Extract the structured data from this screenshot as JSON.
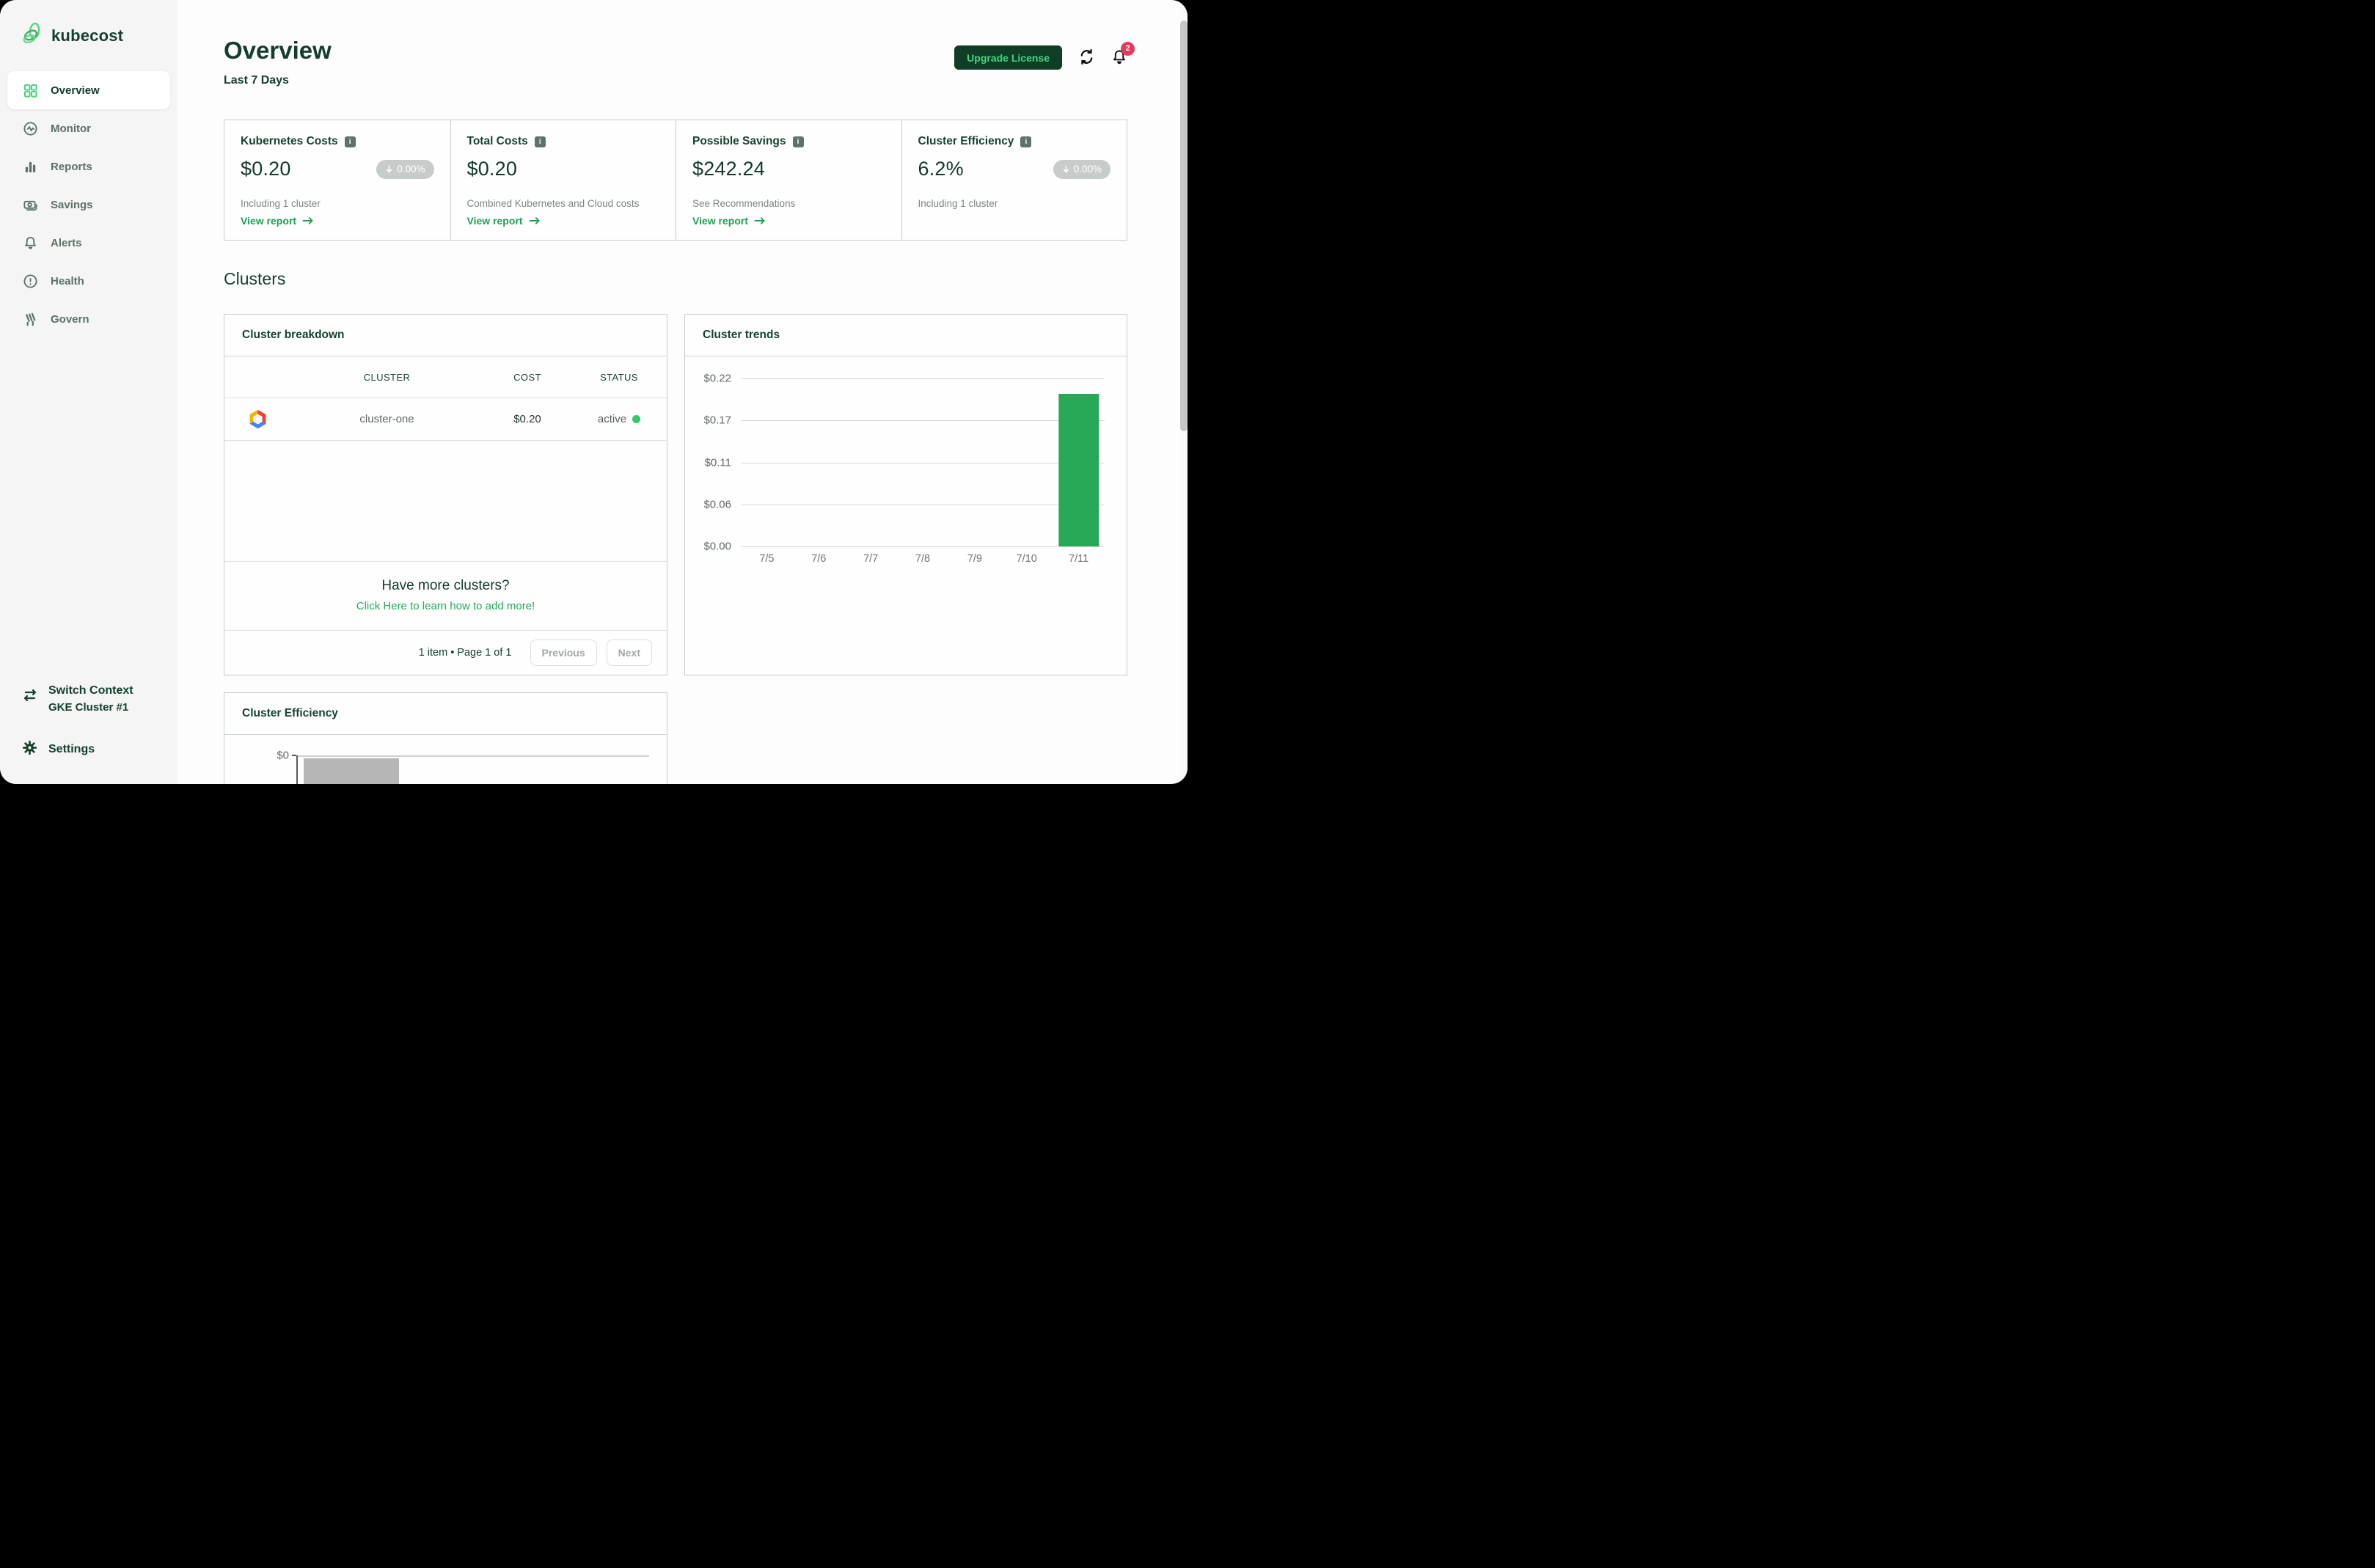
{
  "app": {
    "name": "kubecost"
  },
  "header": {
    "title": "Overview",
    "subtitle": "Last 7 Days",
    "upgrade_label": "Upgrade License",
    "notification_count": "2"
  },
  "sidebar": {
    "items": [
      {
        "label": "Overview",
        "icon": "grid-icon",
        "active": true
      },
      {
        "label": "Monitor",
        "icon": "pulse-circle-icon",
        "active": false
      },
      {
        "label": "Reports",
        "icon": "bar-chart-icon",
        "active": false
      },
      {
        "label": "Savings",
        "icon": "banknote-icon",
        "active": false
      },
      {
        "label": "Alerts",
        "icon": "bell-icon",
        "active": false
      },
      {
        "label": "Health",
        "icon": "exclamation-circle-icon",
        "active": false
      },
      {
        "label": "Govern",
        "icon": "govern-stripes-icon",
        "active": false
      }
    ],
    "switch_context": {
      "title": "Switch Context",
      "subtitle": "GKE Cluster #1",
      "icon": "arrows-left-right-icon"
    },
    "settings_label": "Settings",
    "settings_icon": "gear-icon"
  },
  "stat_cards": [
    {
      "title": "Kubernetes Costs",
      "value": "$0.20",
      "badge": "0.00%",
      "badge_direction": "down",
      "subtitle": "Including 1 cluster",
      "link": "View report"
    },
    {
      "title": "Total Costs",
      "value": "$0.20",
      "subtitle": "Combined Kubernetes and Cloud costs",
      "link": "View report"
    },
    {
      "title": "Possible Savings",
      "value": "$242.24",
      "subtitle": "See Recommendations",
      "link": "View report"
    },
    {
      "title": "Cluster Efficiency",
      "value": "6.2%",
      "badge": "0.00%",
      "badge_direction": "down",
      "subtitle": "Including 1 cluster"
    }
  ],
  "clusters_section": {
    "heading": "Clusters",
    "breakdown": {
      "title": "Cluster breakdown",
      "columns": [
        "CLUSTER",
        "COST",
        "STATUS"
      ],
      "rows": [
        {
          "provider_icon": "gcp-logo",
          "cluster": "cluster-one",
          "cost": "$0.20",
          "status": "active"
        }
      ],
      "prompt_title": "Have more clusters?",
      "prompt_link": "Click Here to learn how to add more!",
      "pagination": {
        "summary": "1 item • Page 1 of 1",
        "previous_label": "Previous",
        "next_label": "Next"
      }
    }
  },
  "chart_data": [
    {
      "type": "bar",
      "title": "Cluster trends",
      "x": [
        "7/5",
        "7/6",
        "7/7",
        "7/8",
        "7/9",
        "7/10",
        "7/11"
      ],
      "values": [
        0,
        0,
        0,
        0,
        0,
        0,
        0.2
      ],
      "yticks": [
        "$0.00",
        "$0.06",
        "$0.11",
        "$0.17",
        "$0.22"
      ],
      "ylim": [
        0,
        0.22
      ],
      "bar_color": "#27a857",
      "grid": "horizontal",
      "legend": "none"
    },
    {
      "type": "bar",
      "title": "Cluster Efficiency",
      "yticks_visible": [
        "$0",
        "$0"
      ],
      "visible_bars": 1,
      "bar_color": "#b6b6b6",
      "clipped_at_viewport_bottom": true
    }
  ],
  "icons": {
    "info_glyph": "i"
  },
  "colors": {
    "brand_dark_green": "#143d2b",
    "accent_green": "#1fa155",
    "upgrade_btn_bg": "#0f3d26",
    "upgrade_btn_text": "#49d37e",
    "notification_red": "#e23a5c",
    "badge_gray": "#c7ccca",
    "status_active_green": "#34c768",
    "trend_bar_green": "#27a857",
    "efficiency_bar_gray": "#b6b6b6",
    "sidebar_bg": "#f4f5f4"
  }
}
